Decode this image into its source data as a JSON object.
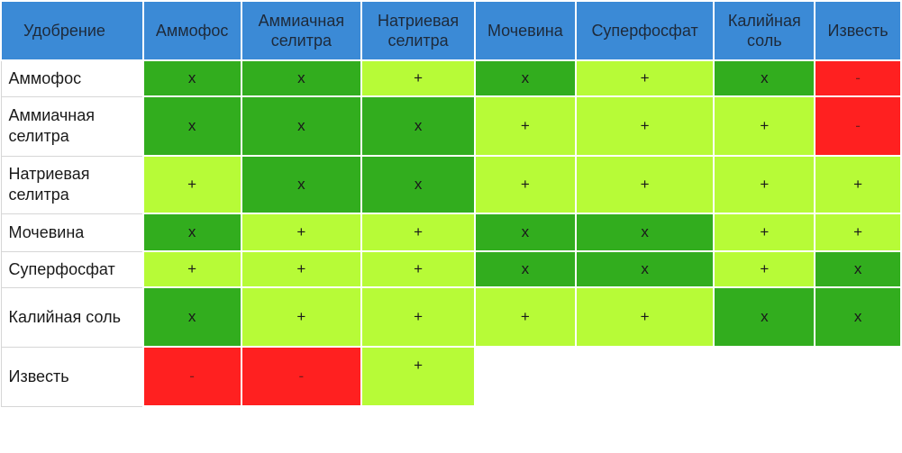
{
  "table": {
    "corner_label": "Удобрение",
    "columns": [
      "Аммофос",
      "Аммиачная селитра",
      "Натриевая селитра",
      "Мочевина",
      "Суперфосфат",
      "Калийная соль",
      "Известь"
    ],
    "rows": [
      {
        "name": "Аммофос",
        "cells": [
          "х",
          "х",
          "+",
          "х",
          "+",
          "х",
          "-"
        ]
      },
      {
        "name": "Аммиачная селитра",
        "cells": [
          "х",
          "х",
          "х",
          "+",
          "+",
          "+",
          "-"
        ]
      },
      {
        "name": "Натриевая селитра",
        "cells": [
          "+",
          "х",
          "х",
          "+",
          "+",
          "+",
          "+"
        ]
      },
      {
        "name": "Мочевина",
        "cells": [
          "х",
          "+",
          "+",
          "х",
          "х",
          "+",
          "+"
        ]
      },
      {
        "name": "Суперфосфат",
        "cells": [
          "+",
          "+",
          "+",
          "х",
          "х",
          "+",
          "х"
        ]
      },
      {
        "name": "Калийная соль",
        "cells": [
          "х",
          "+",
          "+",
          "+",
          "+",
          "х",
          "х"
        ]
      },
      {
        "name": "Известь",
        "cells": [
          "-",
          "-",
          "+",
          "",
          "",
          "",
          ""
        ]
      }
    ]
  },
  "colors": {
    "header_blue": "#3b8ad6",
    "dark_green": "#32ad1e",
    "light_green": "#b7fb37",
    "red": "#ff2020"
  }
}
